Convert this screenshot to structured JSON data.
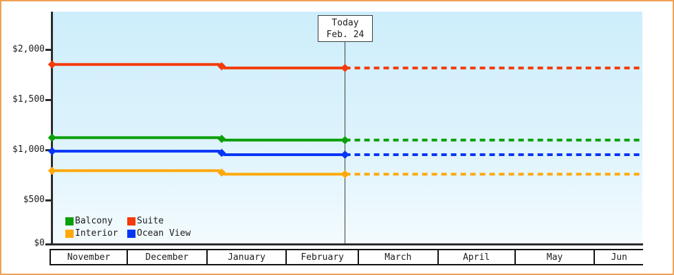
{
  "frame": {
    "border_color": "#efa153",
    "background": "#ffffff"
  },
  "plot": {
    "bg_top_color": "#cdeefb",
    "bg_bottom_color": "#f3fbfe",
    "axis_color": "#2b2b2b"
  },
  "today_box": {
    "title": "Today",
    "date": "Feb. 24"
  },
  "legend": [
    {
      "label": "Balcony",
      "color": "#0aa00a"
    },
    {
      "label": "Suite",
      "color": "#f43b0a"
    },
    {
      "label": "Interior",
      "color": "#ffa80a"
    },
    {
      "label": "Ocean View",
      "color": "#0536f5"
    }
  ],
  "chart_data": {
    "type": "line",
    "title": "",
    "xlabel": "",
    "ylabel": "",
    "grid": false,
    "legend_position": "bottom-left",
    "x_axis": {
      "months": [
        {
          "label": "November",
          "days": 30
        },
        {
          "label": "December",
          "days": 31
        },
        {
          "label": "January",
          "days": 31
        },
        {
          "label": "February",
          "days": 28
        },
        {
          "label": "March",
          "days": 31
        },
        {
          "label": "April",
          "days": 30
        },
        {
          "label": "May",
          "days": 31
        },
        {
          "label": "Jun",
          "days": 19
        }
      ]
    },
    "y_axis": {
      "ticks": [
        {
          "label": "$2,000",
          "value": 2000
        },
        {
          "label": "$1,500",
          "value": 1500
        },
        {
          "label": "$1,000",
          "value": 1000
        },
        {
          "label": "$500",
          "value": 500
        },
        {
          "label": "$0",
          "value": 0
        }
      ],
      "ylim": [
        0,
        2380
      ]
    },
    "today": {
      "label": "Today Feb. 24",
      "day_index": 115
    },
    "series": [
      {
        "name": "Suite",
        "color": "#f43b0a",
        "history": [
          [
            1,
            1850
          ],
          [
            66,
            1850
          ],
          [
            68,
            1815
          ],
          [
            115,
            1815
          ]
        ],
        "forecast": [
          [
            115,
            1815
          ],
          [
            231,
            1815
          ]
        ],
        "markers": [
          [
            1,
            1850
          ],
          [
            67,
            1832
          ],
          [
            115,
            1815
          ]
        ]
      },
      {
        "name": "Balcony",
        "color": "#0aa00a",
        "history": [
          [
            1,
            1120
          ],
          [
            66,
            1120
          ],
          [
            68,
            1095
          ],
          [
            115,
            1095
          ]
        ],
        "forecast": [
          [
            115,
            1095
          ],
          [
            231,
            1095
          ]
        ],
        "markers": [
          [
            1,
            1120
          ],
          [
            67,
            1108
          ],
          [
            115,
            1095
          ]
        ]
      },
      {
        "name": "Ocean View",
        "color": "#0536f5",
        "history": [
          [
            1,
            985
          ],
          [
            66,
            985
          ],
          [
            68,
            950
          ],
          [
            115,
            950
          ]
        ],
        "forecast": [
          [
            115,
            950
          ],
          [
            231,
            950
          ]
        ],
        "markers": [
          [
            1,
            985
          ],
          [
            67,
            968
          ],
          [
            115,
            950
          ]
        ]
      },
      {
        "name": "Interior",
        "color": "#ffa80a",
        "history": [
          [
            1,
            790
          ],
          [
            66,
            790
          ],
          [
            68,
            755
          ],
          [
            115,
            755
          ]
        ],
        "forecast": [
          [
            115,
            755
          ],
          [
            231,
            755
          ]
        ],
        "markers": [
          [
            1,
            790
          ],
          [
            67,
            772
          ],
          [
            115,
            755
          ]
        ]
      }
    ]
  }
}
